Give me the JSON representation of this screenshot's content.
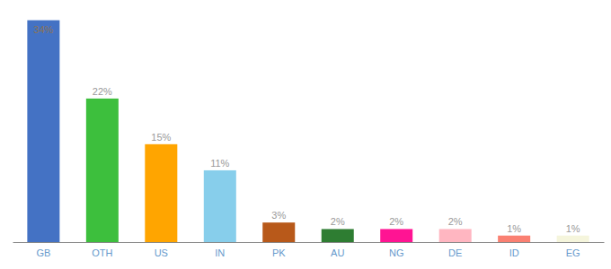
{
  "chart_data": {
    "type": "bar",
    "categories": [
      "GB",
      "OTH",
      "US",
      "IN",
      "PK",
      "AU",
      "NG",
      "DE",
      "ID",
      "EG"
    ],
    "values": [
      34,
      22,
      15,
      11,
      3,
      2,
      2,
      2,
      1,
      1
    ],
    "value_labels": [
      "34%",
      "22%",
      "15%",
      "11%",
      "3%",
      "2%",
      "2%",
      "2%",
      "1%",
      "1%"
    ],
    "colors": [
      "#4472C4",
      "#3DBF3D",
      "#FFA500",
      "#87CEEB",
      "#B8591A",
      "#2E7D32",
      "#FF1493",
      "#FFB6C1",
      "#FA8072",
      "#F5F5DC"
    ],
    "ylim": [
      0,
      36
    ],
    "data_labels": true,
    "tick_labels": "x",
    "grid": false
  }
}
